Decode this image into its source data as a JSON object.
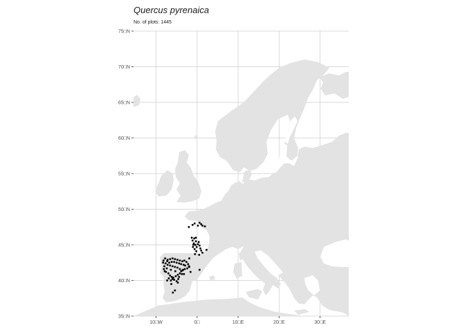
{
  "title": "Quercus pyrenaica",
  "subtitle": "No. of plots: 1445",
  "colors": {
    "land": "#e3e3e3",
    "grid": "#cccccc",
    "background": "#ffffff",
    "points": "#000000",
    "axis_text": "#4d4d4d"
  },
  "chart_data": {
    "type": "scatter",
    "title": "Quercus pyrenaica",
    "subtitle": "No. of plots: 1445",
    "xlabel": "",
    "ylabel": "",
    "xlim": [
      -15.5,
      37
    ],
    "ylim": [
      35,
      75
    ],
    "grid": true,
    "x_ticks": [
      -10,
      0,
      10,
      20,
      30
    ],
    "y_ticks": [
      35,
      40,
      45,
      50,
      55,
      60,
      65,
      70,
      75
    ],
    "x_tick_labels": [
      "10□W",
      "0□",
      "10□E",
      "20□E",
      "30□E"
    ],
    "y_tick_labels": [
      "35□N",
      "40□N",
      "45□N",
      "50□N",
      "55□N",
      "60□N",
      "65□N",
      "70□N",
      "75□N"
    ],
    "series": [
      {
        "points": [
          [
            -8.2,
            42.8
          ],
          [
            -7.8,
            43.1
          ],
          [
            -7.2,
            42.9
          ],
          [
            -6.6,
            43.0
          ],
          [
            -6.0,
            43.1
          ],
          [
            -5.4,
            43.0
          ],
          [
            -4.8,
            42.9
          ],
          [
            -4.2,
            42.8
          ],
          [
            -3.6,
            42.7
          ],
          [
            -3.1,
            42.8
          ],
          [
            -2.6,
            42.6
          ],
          [
            -2.2,
            42.3
          ],
          [
            -1.9,
            41.9
          ],
          [
            -2.4,
            41.7
          ],
          [
            -3.0,
            41.6
          ],
          [
            -3.6,
            41.4
          ],
          [
            -4.2,
            41.6
          ],
          [
            -4.8,
            41.8
          ],
          [
            -5.4,
            41.9
          ],
          [
            -6.0,
            42.0
          ],
          [
            -6.6,
            42.1
          ],
          [
            -7.2,
            42.2
          ],
          [
            -7.7,
            42.4
          ],
          [
            -8.0,
            42.0
          ],
          [
            -8.1,
            41.6
          ],
          [
            -7.6,
            41.2
          ],
          [
            -7.0,
            41.0
          ],
          [
            -6.6,
            40.7
          ],
          [
            -6.2,
            40.5
          ],
          [
            -5.8,
            40.4
          ],
          [
            -5.2,
            40.6
          ],
          [
            -4.7,
            40.8
          ],
          [
            -4.2,
            41.0
          ],
          [
            -3.7,
            40.9
          ],
          [
            -3.2,
            40.9
          ],
          [
            -5.6,
            40.1
          ],
          [
            -6.0,
            40.2
          ],
          [
            -6.4,
            40.0
          ],
          [
            -5.0,
            39.9
          ],
          [
            -4.6,
            40.2
          ],
          [
            -7.3,
            42.7
          ],
          [
            -6.8,
            42.5
          ],
          [
            -6.2,
            42.6
          ],
          [
            -5.6,
            42.6
          ],
          [
            -5.0,
            42.5
          ],
          [
            -4.4,
            42.4
          ],
          [
            -3.9,
            42.3
          ],
          [
            -3.3,
            42.2
          ],
          [
            -2.9,
            42.1
          ],
          [
            -7.9,
            41.3
          ],
          [
            -6.9,
            40.3
          ],
          [
            -4.4,
            40.5
          ],
          [
            -3.9,
            41.3
          ],
          [
            -5.3,
            41.3
          ],
          [
            -6.4,
            41.5
          ],
          [
            -7.4,
            41.7
          ],
          [
            -8.3,
            42.5
          ],
          [
            -6.3,
            39.5
          ],
          [
            -7.3,
            40.0
          ],
          [
            -5.9,
            38.3
          ],
          [
            -5.4,
            38.6
          ],
          [
            -3.4,
            41.5
          ],
          [
            -2.0,
            42.0
          ],
          [
            -4.7,
            39.7
          ],
          [
            -1.9,
            43.1
          ],
          [
            -1.6,
            41.2
          ],
          [
            -1.3,
            46.0
          ],
          [
            -1.1,
            45.6
          ],
          [
            -0.7,
            45.9
          ],
          [
            -0.3,
            45.5
          ],
          [
            -0.8,
            45.2
          ],
          [
            -0.4,
            45.0
          ],
          [
            -1.0,
            44.7
          ],
          [
            -0.6,
            44.4
          ],
          [
            0.2,
            45.1
          ],
          [
            0.6,
            44.9
          ],
          [
            0.8,
            44.5
          ],
          [
            -0.2,
            44.1
          ],
          [
            0.4,
            45.4
          ],
          [
            -0.9,
            45.0
          ],
          [
            -0.1,
            44.7
          ],
          [
            1.0,
            44.2
          ],
          [
            1.3,
            43.9
          ],
          [
            -0.5,
            43.7
          ],
          [
            0.5,
            43.6
          ],
          [
            -0.3,
            46.0
          ],
          [
            -1.1,
            47.8
          ],
          [
            -0.6,
            48.0
          ],
          [
            0.2,
            47.7
          ],
          [
            1.0,
            47.9
          ],
          [
            1.3,
            47.7
          ],
          [
            1.9,
            47.6
          ],
          [
            -2.0,
            47.5
          ],
          [
            0.6,
            48.1
          ],
          [
            2.3,
            44.3
          ],
          [
            0.6,
            41.5
          ]
        ]
      }
    ]
  }
}
